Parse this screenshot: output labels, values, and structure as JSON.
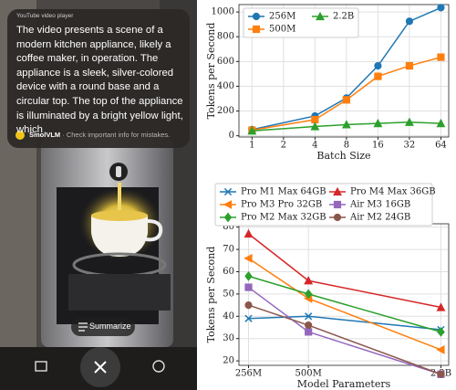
{
  "screenshot": {
    "header": "YouTube video player",
    "message": "The video presents a scene of a modern kitchen appliance, likely a coffee maker, in operation. The appliance is a sleek, silver-colored device with a round base and a circular top. The top of the appliance is illuminated by a bright yellow light, which",
    "app_name": "SmolVLM",
    "disclaimer": "· Check important info for mistakes.",
    "button": "Summarize"
  },
  "chart_data": [
    {
      "type": "line",
      "x_label": "Batch Size",
      "y_label": "Tokens per Second",
      "x": [
        1,
        4,
        8,
        16,
        32,
        64
      ],
      "xscale": "log",
      "xlim": [
        0.75,
        76
      ],
      "xticks": [
        1,
        2,
        4,
        8,
        16,
        32,
        64
      ],
      "ylim": [
        -10,
        1060
      ],
      "yticks": [
        0,
        200,
        400,
        600,
        800,
        1000
      ],
      "grid": true,
      "legend": "upper left",
      "series": [
        {
          "name": "256M",
          "color": "#1f77b4",
          "marker": "circle",
          "values": [
            50,
            160,
            305,
            565,
            925,
            1035
          ]
        },
        {
          "name": "500M",
          "color": "#ff7f0e",
          "marker": "square",
          "values": [
            45,
            130,
            290,
            480,
            565,
            635
          ]
        },
        {
          "name": "2.2B",
          "color": "#2ca02c",
          "marker": "triangle",
          "values": [
            40,
            75,
            90,
            100,
            110,
            100
          ]
        }
      ]
    },
    {
      "type": "line",
      "x_label": "Model Parameters",
      "y_label": "Tokens per Second",
      "x": [
        256,
        500,
        2200
      ],
      "xscale": "log",
      "xlim": [
        230,
        2400
      ],
      "xticks": [
        {
          "value": 256,
          "label": "256M"
        },
        {
          "value": 500,
          "label": "500M"
        },
        {
          "value": 2200,
          "label": "2.2B"
        }
      ],
      "ylim": [
        18,
        81.5
      ],
      "yticks": [
        20,
        30,
        40,
        50,
        60,
        70,
        80
      ],
      "grid": true,
      "legend": "upper center",
      "series": [
        {
          "name": "Pro M1 Max 64GB",
          "color": "#1f77b4",
          "marker": "x",
          "values": [
            39,
            40,
            34
          ]
        },
        {
          "name": "Pro M3 Pro 32GB",
          "color": "#ff7f0e",
          "marker": "triangle-left",
          "values": [
            66,
            48,
            25
          ]
        },
        {
          "name": "Pro M2 Max 32GB",
          "color": "#2ca02c",
          "marker": "diamond",
          "values": [
            58,
            50,
            33
          ]
        },
        {
          "name": "Pro M4 Max 36GB",
          "color": "#d62728",
          "marker": "triangle",
          "values": [
            77,
            56,
            44
          ]
        },
        {
          "name": "Air M3 16GB",
          "color": "#9467bd",
          "marker": "square",
          "values": [
            53,
            33,
            14
          ]
        },
        {
          "name": "Air M2 24GB",
          "color": "#8c564b",
          "marker": "circle",
          "values": [
            45,
            36,
            14
          ]
        }
      ]
    }
  ]
}
